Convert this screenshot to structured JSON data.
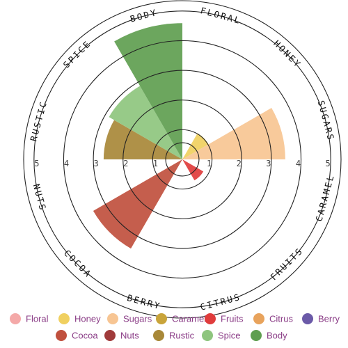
{
  "chart_data": {
    "type": "polar-bar",
    "title": "",
    "rlim": [
      0,
      5
    ],
    "r_ticks": [
      "1",
      "2",
      "3",
      "4",
      "5"
    ],
    "grid": true,
    "legend": "bottom",
    "categories": [
      "Floral",
      "Honey",
      "Sugars",
      "Caramel",
      "Fruits",
      "Citrus",
      "Berry",
      "Cocoa",
      "Nuts",
      "Rustic",
      "Spice",
      "Body"
    ],
    "axis_labels": [
      "FLORAL",
      "HONEY",
      "SUGARS",
      "CARAMEL",
      "FRUITS",
      "CITRUS",
      "BERRY",
      "COCOA",
      "NUTS",
      "RUSTIC",
      "SPICE",
      "BODY"
    ],
    "values": [
      0,
      1,
      3.4,
      0,
      0.8,
      0,
      0,
      3.4,
      0,
      2.6,
      2.8,
      4.5
    ],
    "colors": [
      "#f4a9a8",
      "#f0d060",
      "#f7c593",
      "#c9a43a",
      "#e03c3c",
      "#e8a35c",
      "#6b5aa8",
      "#c0503e",
      "#a03b3b",
      "#a88838",
      "#8ec57e",
      "#5f9e50"
    ]
  }
}
